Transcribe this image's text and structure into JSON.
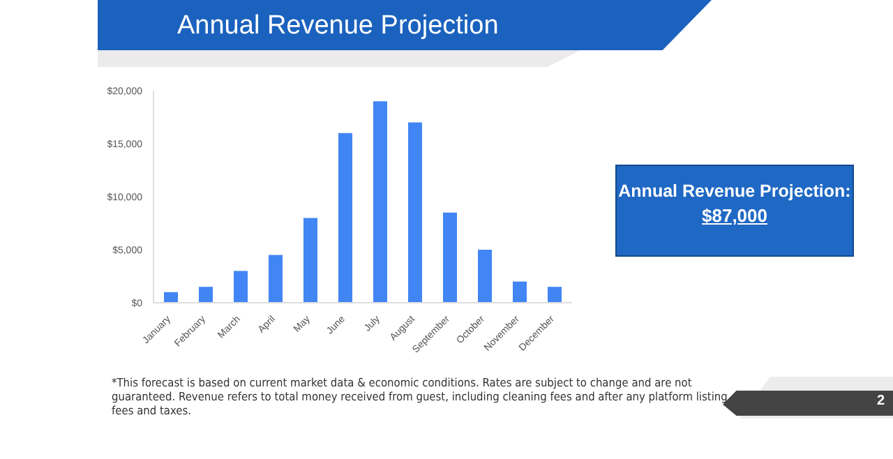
{
  "chart_data": {
    "type": "bar",
    "title": "Annual Revenue Projection",
    "categories": [
      "January",
      "February",
      "March",
      "April",
      "May",
      "June",
      "July",
      "August",
      "September",
      "October",
      "November",
      "December"
    ],
    "values": [
      1000,
      1500,
      3000,
      4500,
      8000,
      16000,
      19000,
      17000,
      8500,
      5000,
      2000,
      1500
    ],
    "color": "#4285f4",
    "ylim": [
      0,
      20000
    ],
    "yticks": [
      {
        "value": 0,
        "label": "$0"
      },
      {
        "value": 5000,
        "label": "$5,000"
      },
      {
        "value": 10000,
        "label": "$10,000"
      },
      {
        "value": 15000,
        "label": "$15,000"
      },
      {
        "value": 20000,
        "label": "$20,000"
      }
    ],
    "grid": false,
    "legend": false,
    "annotations": [
      "Annual Revenue Projection:",
      "$87,000",
      "*This forecast is based on current market data & economic conditions. Rates are subject to change and are not guaranteed. Revenue refers to total money received from guest, including cleaning fees and after any platform listing fees and taxes.",
      "2"
    ]
  }
}
